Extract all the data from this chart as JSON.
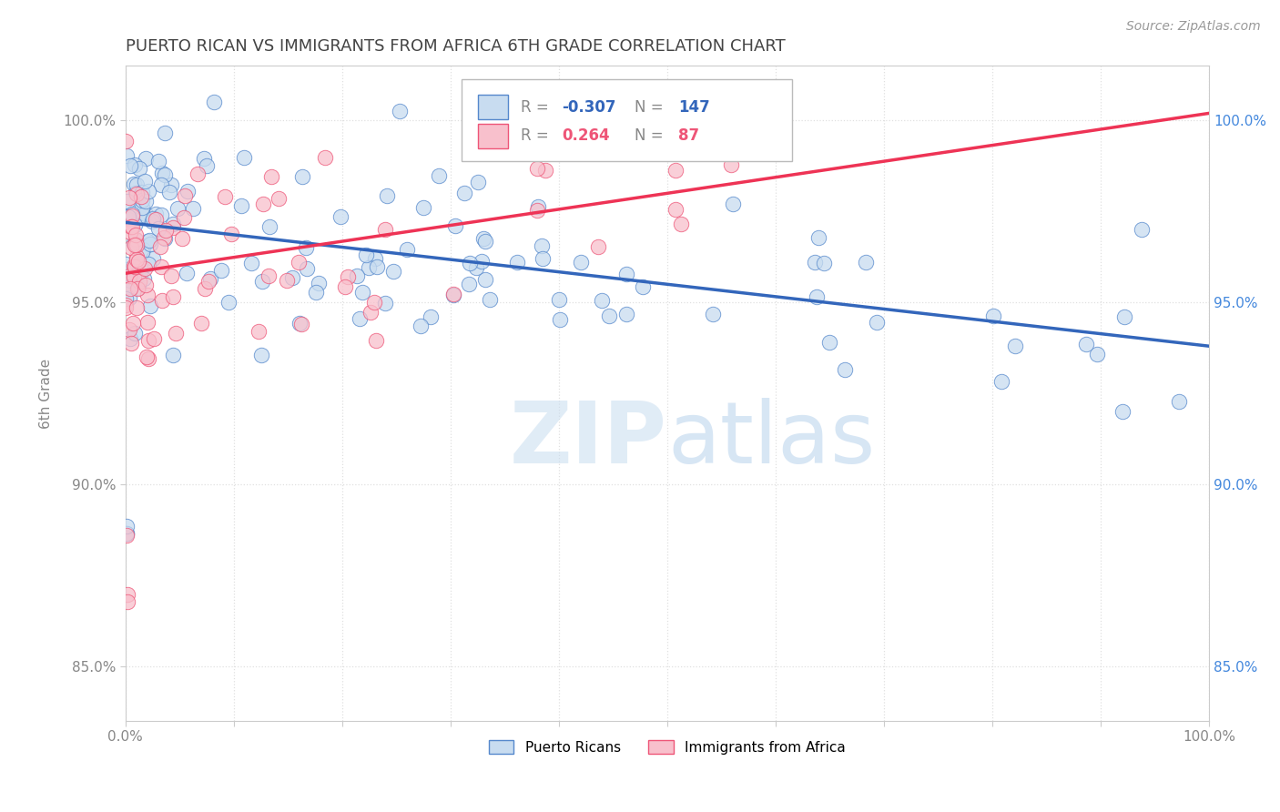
{
  "title": "PUERTO RICAN VS IMMIGRANTS FROM AFRICA 6TH GRADE CORRELATION CHART",
  "source_text": "Source: ZipAtlas.com",
  "ylabel": "6th Grade",
  "legend_blue_label": "Puerto Ricans",
  "legend_pink_label": "Immigrants from Africa",
  "r_blue": "-0.307",
  "n_blue": "147",
  "r_pink": "0.264",
  "n_pink": "87",
  "blue_fill": "#c8dcf0",
  "blue_edge": "#5588cc",
  "pink_fill": "#f8c0cc",
  "pink_edge": "#ee5577",
  "blue_line": "#3366bb",
  "pink_line": "#ee3355",
  "title_color": "#444444",
  "source_color": "#999999",
  "right_tick_color": "#4488dd",
  "grid_color": "#e0e0e0",
  "watermark_color": "#d0e4f4",
  "background": "#ffffff",
  "xlim": [
    0,
    100
  ],
  "ylim": [
    83.5,
    101.5
  ],
  "y_ticks": [
    85,
    90,
    95,
    100
  ],
  "blue_trend_y0": 97.2,
  "blue_trend_y1": 93.8,
  "pink_trend_y0": 95.8,
  "pink_trend_y1": 100.2,
  "seed": 12
}
